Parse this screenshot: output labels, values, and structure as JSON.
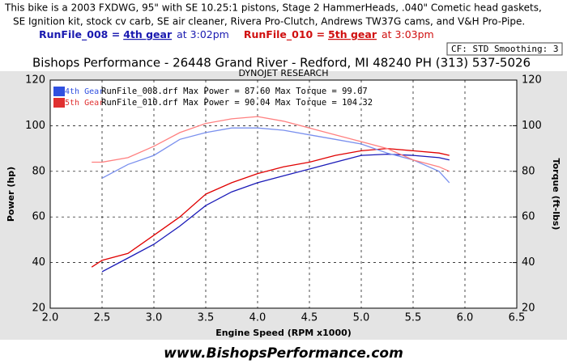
{
  "header": {
    "lines": [
      "This bike is a 2003 FXDWG, 95\" with SE 10.25:1 pistons, Stage 2 HammerHeads, .040\" Cometic head gaskets,",
      "SE Ignition kit, stock cv carb, SE air cleaner, Rivera Pro-Clutch, Andrews TW37G cams, and V&H Pro-Pipe."
    ],
    "runs": [
      {
        "file": "RunFile_008 =",
        "gear": "4th gear",
        "time": "at 3:02pm",
        "color": "#1a1ab0"
      },
      {
        "file": "RunFile_010 =",
        "gear": "5th gear",
        "time": "at 3:03pm",
        "color": "#d01010"
      }
    ],
    "settings": "CF: STD  Smoothing: 3",
    "shop": "Bishops Performance - 26448 Grand River - Redford, MI 48240   PH (313) 537-5026"
  },
  "chart_data": {
    "type": "line",
    "title": "DYNOJET RESEARCH",
    "x_label": "Engine Speed (RPM x1000)",
    "y_label": "Power (hp)",
    "y2_label": "Torque (ft-lbs)",
    "x": [
      2.4,
      2.5,
      2.75,
      3.0,
      3.25,
      3.5,
      3.75,
      4.0,
      4.25,
      4.5,
      4.75,
      5.0,
      5.25,
      5.5,
      5.75,
      5.85
    ],
    "series": [
      {
        "color": "#1a1ab8",
        "values": [
          null,
          36,
          42,
          48,
          56,
          65,
          71,
          75,
          78,
          81,
          84,
          87,
          87.5,
          87,
          86,
          85
        ]
      },
      {
        "color": "#e00000",
        "values": [
          38,
          41,
          44,
          52,
          60,
          70,
          75,
          79,
          82,
          84,
          87,
          89,
          90,
          89,
          88,
          87
        ]
      },
      {
        "color": "#7a90ee",
        "axis": "y2",
        "values": [
          null,
          77,
          83,
          87,
          94,
          97,
          99,
          99,
          98,
          96,
          94,
          92,
          88,
          85,
          80,
          75
        ]
      },
      {
        "color": "#ff8080",
        "axis": "y2",
        "values": [
          84,
          84,
          86,
          91,
          97,
          101,
          103,
          104,
          102,
          99,
          96,
          93,
          90,
          85,
          82,
          80
        ]
      }
    ],
    "legend": [
      {
        "label": "4th Gear",
        "text": "RunFile_008.drf Max Power = 87.60 Max Torque = 99.07",
        "color": "#3050e0"
      },
      {
        "label": "5th Gear",
        "text": "RunFile_010.drf Max Power = 90.04 Max Torque = 104.32",
        "color": "#e03030"
      }
    ],
    "xlim": [
      2.0,
      6.5
    ],
    "xticks": [
      {
        "value": 2,
        "label": "2.0"
      },
      {
        "value": 2.5,
        "label": "2.5"
      },
      {
        "value": 3,
        "label": "3.0"
      },
      {
        "value": 3.5,
        "label": "3.5"
      },
      {
        "value": 4,
        "label": "4.0"
      },
      {
        "value": 4.5,
        "label": "4.5"
      },
      {
        "value": 5,
        "label": "5.0"
      },
      {
        "value": 5.5,
        "label": "5.5"
      },
      {
        "value": 6,
        "label": "6.0"
      },
      {
        "value": 6.5,
        "label": "6.5"
      }
    ],
    "ylim": [
      20,
      120
    ],
    "yticks": [
      20,
      40,
      60,
      80,
      100,
      120
    ],
    "y2lim": [
      20,
      120
    ],
    "y2ticks": [
      20,
      40,
      60,
      80,
      100,
      120
    ],
    "grid": true
  },
  "footer": "www.BishopsPerformance.com"
}
